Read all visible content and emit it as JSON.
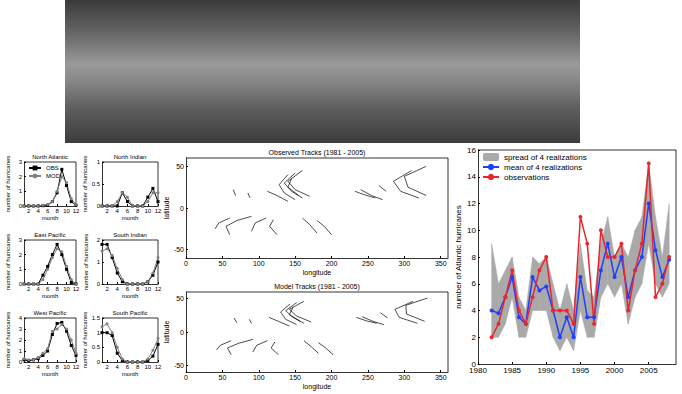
{
  "chart_data": [
    {
      "type": "line",
      "title": "North Atlantic",
      "xlabel": "month",
      "ylabel": "number of hurricanes",
      "x": [
        1,
        2,
        3,
        4,
        5,
        6,
        7,
        8,
        9,
        10,
        11,
        12
      ],
      "xlim": [
        1,
        12
      ],
      "xticks": [
        2,
        4,
        6,
        8,
        10,
        12
      ],
      "ylim": [
        0,
        3
      ],
      "yticks": [
        0,
        1,
        2,
        3
      ],
      "grid": false,
      "legend": "upper left",
      "series": [
        {
          "name": "OBS",
          "color": "#000000",
          "marker": "square",
          "values": [
            0,
            0,
            0,
            0,
            0.02,
            0.05,
            0.3,
            0.9,
            2.5,
            1.4,
            0.3,
            0.05
          ]
        },
        {
          "name": "MOD",
          "color": "#808080",
          "marker": "circle",
          "values": [
            0,
            0,
            0,
            0,
            0.05,
            0.1,
            0.3,
            1.0,
            2.0,
            1.6,
            0.5,
            0.1
          ]
        }
      ]
    },
    {
      "type": "line",
      "title": "North Indian",
      "xlabel": "month",
      "ylabel": "number of hurricanes",
      "x": [
        1,
        2,
        3,
        4,
        5,
        6,
        7,
        8,
        9,
        10,
        11,
        12
      ],
      "xlim": [
        1,
        12
      ],
      "xticks": [
        2,
        4,
        6,
        8,
        10,
        12
      ],
      "ylim": [
        0,
        1
      ],
      "yticks": [
        0,
        0.5,
        1
      ],
      "grid": false,
      "series": [
        {
          "name": "OBS",
          "color": "#000000",
          "marker": "square",
          "values": [
            0,
            0,
            0,
            0,
            0.3,
            0.1,
            0,
            0,
            0,
            0.2,
            0.4,
            0.1
          ]
        },
        {
          "name": "MOD",
          "color": "#808080",
          "marker": "circle",
          "values": [
            0,
            0,
            0,
            0.1,
            0.3,
            0.2,
            0,
            0,
            0,
            0.1,
            0.3,
            0.3
          ]
        }
      ]
    },
    {
      "type": "line",
      "title": "East Pacific",
      "xlabel": "month",
      "ylabel": "number of hurricanes",
      "x": [
        1,
        2,
        3,
        4,
        5,
        6,
        7,
        8,
        9,
        10,
        11,
        12
      ],
      "xlim": [
        1,
        12
      ],
      "xticks": [
        2,
        4,
        6,
        8,
        10,
        12
      ],
      "ylim": [
        0,
        3
      ],
      "yticks": [
        0,
        1,
        2,
        3
      ],
      "grid": false,
      "series": [
        {
          "name": "OBS",
          "color": "#000000",
          "marker": "square",
          "values": [
            0,
            0,
            0,
            0,
            0.6,
            1.2,
            2.0,
            2.7,
            2.0,
            1.0,
            0.1,
            0
          ]
        },
        {
          "name": "MOD",
          "color": "#808080",
          "marker": "circle",
          "values": [
            0,
            0,
            0,
            0,
            0.3,
            1.0,
            1.8,
            2.4,
            2.2,
            1.2,
            0.3,
            0
          ]
        }
      ]
    },
    {
      "type": "line",
      "title": "South Indian",
      "xlabel": "month",
      "ylabel": "number of hurricanes",
      "x": [
        1,
        2,
        3,
        4,
        5,
        6,
        7,
        8,
        9,
        10,
        11,
        12
      ],
      "xlim": [
        1,
        12
      ],
      "xticks": [
        2,
        4,
        6,
        8,
        10,
        12
      ],
      "ylim": [
        0,
        2
      ],
      "yticks": [
        0,
        1,
        2
      ],
      "grid": false,
      "series": [
        {
          "name": "OBS",
          "color": "#000000",
          "marker": "square",
          "values": [
            1.8,
            1.8,
            1.2,
            0.5,
            0.1,
            0,
            0,
            0,
            0,
            0.1,
            0.4,
            1.0
          ]
        },
        {
          "name": "MOD",
          "color": "#808080",
          "marker": "circle",
          "values": [
            1.5,
            1.6,
            1.3,
            0.7,
            0.2,
            0,
            0,
            0,
            0,
            0.1,
            0.5,
            1.2
          ]
        }
      ]
    },
    {
      "type": "line",
      "title": "West Pacific",
      "xlabel": "month",
      "ylabel": "number of hurricanes",
      "x": [
        1,
        2,
        3,
        4,
        5,
        6,
        7,
        8,
        9,
        10,
        11,
        12
      ],
      "xlim": [
        1,
        12
      ],
      "xticks": [
        2,
        4,
        6,
        8,
        10,
        12
      ],
      "ylim": [
        0,
        4
      ],
      "yticks": [
        0,
        1,
        2,
        3,
        4
      ],
      "grid": false,
      "series": [
        {
          "name": "OBS",
          "color": "#000000",
          "marker": "square",
          "values": [
            0.2,
            0.1,
            0.2,
            0.3,
            0.6,
            1.0,
            2.5,
            3.5,
            3.6,
            2.8,
            1.5,
            0.6
          ]
        },
        {
          "name": "MOD",
          "color": "#808080",
          "marker": "circle",
          "values": [
            0.3,
            0.2,
            0.2,
            0.4,
            0.8,
            1.2,
            2.8,
            3.0,
            3.4,
            3.0,
            2.0,
            0.8
          ]
        }
      ]
    },
    {
      "type": "line",
      "title": "South Pacific",
      "xlabel": "month",
      "ylabel": "number of hurricanes",
      "x": [
        1,
        2,
        3,
        4,
        5,
        6,
        7,
        8,
        9,
        10,
        11,
        12
      ],
      "xlim": [
        1,
        12
      ],
      "xticks": [
        2,
        4,
        6,
        8,
        10,
        12
      ],
      "ylim": [
        0,
        1.5
      ],
      "yticks": [
        0,
        0.5,
        1,
        1.5
      ],
      "grid": false,
      "series": [
        {
          "name": "OBS",
          "color": "#000000",
          "marker": "square",
          "values": [
            1.0,
            1.0,
            0.9,
            0.3,
            0.05,
            0,
            0,
            0,
            0,
            0.05,
            0.2,
            0.6
          ]
        },
        {
          "name": "MOD",
          "color": "#808080",
          "marker": "circle",
          "values": [
            1.2,
            1.3,
            1.0,
            0.5,
            0.1,
            0,
            0,
            0,
            0,
            0.1,
            0.4,
            0.8
          ]
        }
      ]
    },
    {
      "type": "line",
      "title": "Observed Tracks (1981 - 2005)",
      "xlabel": "longitude",
      "ylabel": "latitude",
      "xlim": [
        0,
        360
      ],
      "xticks": [
        0,
        50,
        100,
        150,
        200,
        250,
        300,
        350
      ],
      "ylim": [
        -60,
        60
      ],
      "yticks": [
        -50,
        0,
        50
      ],
      "grid": false,
      "color": "#000000",
      "tracks": [
        [
          [
            150,
            10
          ],
          [
            135,
            18
          ],
          [
            128,
            28
          ],
          [
            140,
            40
          ]
        ],
        [
          [
            160,
            12
          ],
          [
            145,
            20
          ],
          [
            135,
            30
          ],
          [
            150,
            42
          ]
        ],
        [
          [
            140,
            8
          ],
          [
            125,
            15
          ],
          [
            112,
            20
          ]
        ],
        [
          [
            155,
            15
          ],
          [
            140,
            25
          ],
          [
            145,
            35
          ]
        ],
        [
          [
            170,
            14
          ],
          [
            150,
            22
          ],
          [
            140,
            32
          ],
          [
            160,
            45
          ]
        ],
        [
          [
            260,
            12
          ],
          [
            245,
            16
          ],
          [
            232,
            20
          ]
        ],
        [
          [
            270,
            10
          ],
          [
            255,
            15
          ],
          [
            240,
            22
          ]
        ],
        [
          [
            320,
            12
          ],
          [
            295,
            20
          ],
          [
            285,
            32
          ],
          [
            310,
            45
          ]
        ],
        [
          [
            330,
            15
          ],
          [
            305,
            25
          ],
          [
            300,
            38
          ],
          [
            330,
            50
          ]
        ],
        [
          [
            275,
            20
          ],
          [
            265,
            27
          ]
        ],
        [
          [
            88,
            12
          ],
          [
            85,
            18
          ]
        ],
        [
          [
            68,
            15
          ],
          [
            65,
            22
          ]
        ],
        [
          [
            90,
            -10
          ],
          [
            70,
            -15
          ],
          [
            55,
            -22
          ],
          [
            60,
            -32
          ]
        ],
        [
          [
            110,
            -12
          ],
          [
            95,
            -18
          ],
          [
            90,
            -28
          ]
        ],
        [
          [
            60,
            -12
          ],
          [
            45,
            -18
          ],
          [
            40,
            -25
          ]
        ],
        [
          [
            120,
            -14
          ],
          [
            115,
            -22
          ],
          [
            125,
            -32
          ]
        ],
        [
          [
            160,
            -12
          ],
          [
            170,
            -20
          ],
          [
            180,
            -30
          ]
        ],
        [
          [
            180,
            -15
          ],
          [
            190,
            -22
          ],
          [
            200,
            -32
          ]
        ]
      ]
    },
    {
      "type": "line",
      "title": "Model Tracks (1981 - 2005)",
      "xlabel": "longitude",
      "ylabel": "latitude",
      "xlim": [
        0,
        360
      ],
      "xticks": [
        0,
        50,
        100,
        150,
        200,
        250,
        300,
        350
      ],
      "ylim": [
        -60,
        60
      ],
      "yticks": [
        -50,
        0,
        50
      ],
      "grid": false,
      "color": "#000000",
      "tracks": [
        [
          [
            152,
            11
          ],
          [
            137,
            19
          ],
          [
            130,
            30
          ],
          [
            143,
            42
          ]
        ],
        [
          [
            162,
            13
          ],
          [
            147,
            22
          ],
          [
            137,
            32
          ],
          [
            152,
            44
          ]
        ],
        [
          [
            142,
            9
          ],
          [
            127,
            16
          ],
          [
            114,
            22
          ]
        ],
        [
          [
            157,
            16
          ],
          [
            142,
            26
          ],
          [
            147,
            37
          ]
        ],
        [
          [
            172,
            15
          ],
          [
            152,
            24
          ],
          [
            142,
            34
          ],
          [
            162,
            46
          ]
        ],
        [
          [
            262,
            13
          ],
          [
            247,
            17
          ],
          [
            234,
            22
          ]
        ],
        [
          [
            272,
            11
          ],
          [
            257,
            16
          ],
          [
            242,
            23
          ]
        ],
        [
          [
            318,
            13
          ],
          [
            293,
            22
          ],
          [
            287,
            34
          ],
          [
            312,
            46
          ]
        ],
        [
          [
            328,
            16
          ],
          [
            303,
            27
          ],
          [
            302,
            40
          ],
          [
            332,
            51
          ]
        ],
        [
          [
            277,
            21
          ],
          [
            267,
            29
          ]
        ],
        [
          [
            90,
            13
          ],
          [
            87,
            19
          ]
        ],
        [
          [
            70,
            14
          ],
          [
            66,
            21
          ]
        ],
        [
          [
            92,
            -11
          ],
          [
            72,
            -17
          ],
          [
            57,
            -24
          ],
          [
            62,
            -34
          ]
        ],
        [
          [
            112,
            -13
          ],
          [
            97,
            -20
          ],
          [
            92,
            -30
          ]
        ],
        [
          [
            62,
            -13
          ],
          [
            47,
            -20
          ],
          [
            42,
            -27
          ]
        ],
        [
          [
            122,
            -15
          ],
          [
            117,
            -24
          ],
          [
            127,
            -34
          ]
        ],
        [
          [
            162,
            -13
          ],
          [
            172,
            -22
          ],
          [
            182,
            -32
          ]
        ],
        [
          [
            182,
            -16
          ],
          [
            192,
            -24
          ],
          [
            202,
            -34
          ]
        ]
      ]
    },
    {
      "type": "line",
      "ylabel": "number of Atlantic hurricanes",
      "x": [
        1982,
        1983,
        1984,
        1985,
        1986,
        1987,
        1988,
        1989,
        1990,
        1991,
        1992,
        1993,
        1994,
        1995,
        1996,
        1997,
        1998,
        1999,
        2000,
        2001,
        2002,
        2003,
        2004,
        2005,
        2006,
        2007,
        2008
      ],
      "xlim": [
        1980,
        2009
      ],
      "xticks": [
        1980,
        1985,
        1990,
        1995,
        2000,
        2005
      ],
      "ylim": [
        0,
        16
      ],
      "yticks": [
        0,
        2,
        4,
        6,
        8,
        10,
        12,
        14,
        16
      ],
      "grid": false,
      "legend": "upper left",
      "series": [
        {
          "name": "spread of 4 realizations",
          "type": "band",
          "color": "#a9a9a9",
          "lower": [
            2,
            2,
            3,
            5,
            2,
            2,
            4,
            4,
            4,
            2,
            1,
            2,
            1,
            4,
            2,
            2,
            5,
            6,
            5,
            6,
            3,
            5,
            6,
            9,
            6,
            5,
            6
          ],
          "upper": [
            9,
            6,
            7,
            8,
            5,
            4,
            8,
            7.5,
            8,
            6,
            4,
            6,
            4,
            9,
            5.5,
            5,
            9,
            11,
            8,
            9,
            8,
            10,
            11,
            15,
            11,
            8,
            12
          ]
        },
        {
          "name": "mean of 4 realizations",
          "type": "line",
          "color": "#1f3fff",
          "marker": "circle",
          "values": [
            4,
            3.8,
            5,
            6.5,
            3.5,
            3,
            6.5,
            5.5,
            5.8,
            4,
            2,
            3.5,
            2,
            6.5,
            3.5,
            3.5,
            7,
            9,
            6.5,
            8,
            5,
            7,
            8,
            12,
            8.5,
            6.5,
            7.8
          ]
        },
        {
          "name": "observations",
          "type": "line",
          "color": "#e8262c",
          "marker": "circle",
          "values": [
            2,
            3,
            5,
            7,
            4,
            3,
            5,
            7,
            8,
            4,
            4,
            4,
            3,
            11,
            9,
            3,
            10,
            8,
            8,
            9,
            4,
            7,
            9,
            15,
            5,
            6,
            8
          ]
        }
      ]
    }
  ]
}
